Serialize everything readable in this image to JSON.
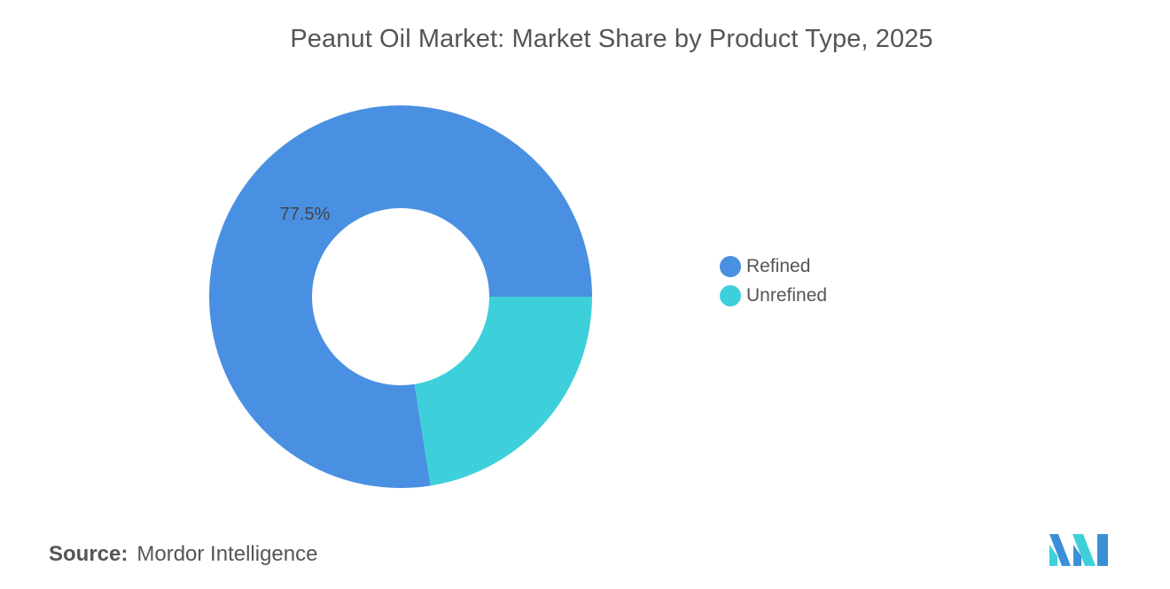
{
  "chart_data": {
    "type": "pie",
    "title": "Peanut Oil Market: Market Share by Product Type, 2025",
    "donut": true,
    "categories": [
      "Refined",
      "Unrefined"
    ],
    "values": [
      77.5,
      22.5
    ],
    "data_labels": [
      "77.5%",
      ""
    ],
    "colors": [
      "#4a90e2",
      "#3ed0da"
    ],
    "legend_position": "right"
  },
  "source": {
    "label": "Source:",
    "text": "Mordor Intelligence"
  },
  "logo": {
    "icon": "mordor-intelligence-logo-icon",
    "colors": [
      "#3a8fd6",
      "#3ed0da"
    ]
  }
}
